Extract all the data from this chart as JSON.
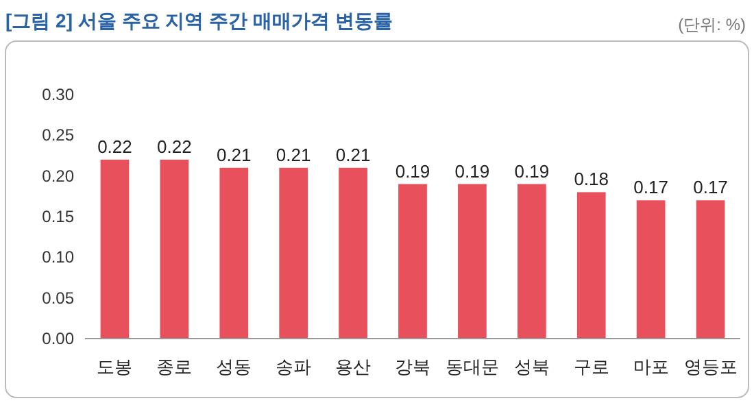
{
  "chart_data": {
    "type": "bar",
    "title": "[그림 2] 서울 주요 지역 주간 매매가격 변동률",
    "annotations": [
      "(단위: %)"
    ],
    "categories": [
      "도봉",
      "종로",
      "성동",
      "송파",
      "용산",
      "강북",
      "동대문",
      "성북",
      "구로",
      "마포",
      "영등포"
    ],
    "values": [
      0.22,
      0.22,
      0.21,
      0.21,
      0.21,
      0.19,
      0.19,
      0.19,
      0.18,
      0.17,
      0.17
    ],
    "color": "#e8505b",
    "data_labels": true,
    "ylim": [
      0,
      0.3
    ],
    "yticks": [
      {
        "value": 0,
        "label": "0.00"
      },
      {
        "value": 0.05,
        "label": "0.05"
      },
      {
        "value": 0.1,
        "label": "0.10"
      },
      {
        "value": 0.15,
        "label": "0.15"
      },
      {
        "value": 0.2,
        "label": "0.20"
      },
      {
        "value": 0.25,
        "label": "0.25"
      },
      {
        "value": 0.3,
        "label": "0.30"
      }
    ]
  }
}
